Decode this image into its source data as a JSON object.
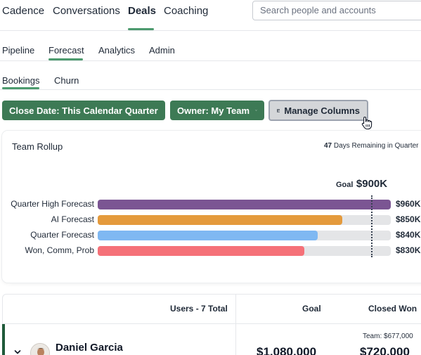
{
  "topnav": {
    "items": [
      "Cadence",
      "Conversations",
      "Deals",
      "Coaching"
    ],
    "active": "Deals",
    "search_placeholder": "Search people and accounts"
  },
  "subnav": {
    "items": [
      "Pipeline",
      "Forecast",
      "Analytics",
      "Admin"
    ],
    "active": "Forecast"
  },
  "tabs": {
    "items": [
      "Bookings",
      "Churn"
    ],
    "active": "Bookings"
  },
  "filters": {
    "close_date": "Close Date: This Calendar Quarter",
    "owner": "Owner: My Team",
    "manage_columns": "Manage Columns"
  },
  "rollup": {
    "title": "Team Rollup",
    "days_remaining": "47",
    "days_remaining_text": "Days Remaining in Quarter",
    "goal_label": "Goal",
    "goal_value": "$900K",
    "goal_amount": 900,
    "axis_max": 960,
    "rows": [
      {
        "label": "Quarter High Forecast",
        "value": "$960K",
        "amount": 960,
        "color": "#7b5593"
      },
      {
        "label": "AI Forecast",
        "value": "$850K",
        "amount": 850,
        "color": "#e49a3c"
      },
      {
        "label": "Quarter Forecast",
        "value": "$840K",
        "amount": 840,
        "color": "#7fb8f2"
      },
      {
        "label": "Won, Comm, Prob",
        "value": "$830K",
        "amount": 830,
        "color": "#f57178"
      }
    ]
  },
  "table": {
    "headers": {
      "users": "Users - 7 Total",
      "goal": "Goal",
      "closed_won": "Closed Won"
    },
    "rows": [
      {
        "name": "Daniel Garcia",
        "goal": "$1,080,000",
        "closed_won": "$720,000",
        "team_note": "Team: $677,000"
      }
    ]
  },
  "colors": {
    "accent_green": "#3d7a55",
    "nav_underline": "#4c9a6e"
  }
}
